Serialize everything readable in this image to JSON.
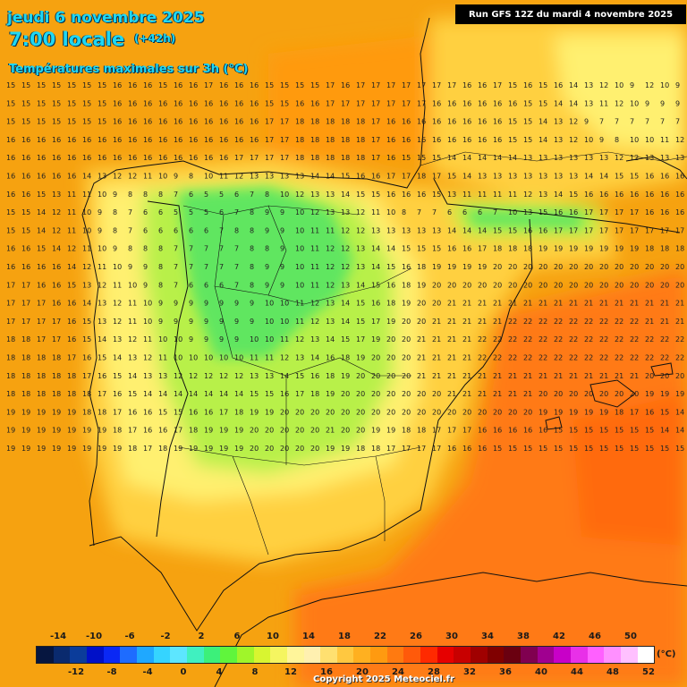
{
  "header": {
    "date": "jeudi 6 novembre 2025",
    "time": "7:00 locale",
    "lead": "(+42h)",
    "parameter": "Températures maximales sur 3h (°C)",
    "run": "Run GFS 12Z du mardi 4 novembre 2025"
  },
  "legend": {
    "unit": "(°C)",
    "upper_labels": [
      "-14",
      "-10",
      "-6",
      "-2",
      "2",
      "6",
      "10",
      "14",
      "18",
      "22",
      "26",
      "30",
      "34",
      "38",
      "42",
      "46",
      "50"
    ],
    "lower_labels": [
      "-12",
      "-8",
      "-4",
      "0",
      "4",
      "8",
      "12",
      "16",
      "20",
      "24",
      "28",
      "32",
      "36",
      "40",
      "44",
      "48",
      "52"
    ],
    "colors": [
      "#061640",
      "#0a2a6e",
      "#0b3c9a",
      "#0010c8",
      "#0a28f5",
      "#1e6cff",
      "#1fa8ff",
      "#35d4ff",
      "#5de6ff",
      "#40f0c0",
      "#3cf07a",
      "#60f53c",
      "#a0f52a",
      "#d8f530",
      "#f5f560",
      "#fff59a",
      "#fff0b0",
      "#ffe070",
      "#ffc840",
      "#ffb020",
      "#ff9a10",
      "#ff7a10",
      "#ff5a0a",
      "#ff2a00",
      "#e60000",
      "#c80000",
      "#a00000",
      "#800000",
      "#6a0010",
      "#800050",
      "#a00090",
      "#c800c8",
      "#e830e8",
      "#ff60ff",
      "#ff90ff",
      "#ffc0ff",
      "#ffffff"
    ]
  },
  "map": {
    "colors": {
      "sea_warm": "#f6a210",
      "sea_hot": "#ff7a14",
      "land_mild": "#ffd040",
      "land_cool": "#fff070",
      "land_cold": "#b8f04a",
      "land_coldest": "#60e660",
      "coast": "#111111"
    },
    "sample_values": [
      [
        15,
        15,
        15,
        15,
        15,
        15,
        15,
        16,
        16,
        16,
        15,
        16,
        16,
        17,
        16,
        16,
        16,
        15,
        15,
        15,
        15,
        17,
        16,
        17,
        17,
        17,
        17,
        17,
        17,
        17,
        16,
        16,
        17,
        15,
        16,
        15,
        16,
        14,
        13,
        12,
        10,
        9,
        12,
        10,
        9
      ],
      [
        15,
        15,
        15,
        15,
        15,
        15,
        15,
        16,
        16,
        16,
        16,
        16,
        16,
        16,
        16,
        16,
        16,
        15,
        15,
        16,
        16,
        17,
        17,
        17,
        17,
        17,
        17,
        17,
        16,
        16,
        16,
        16,
        16,
        16,
        15,
        15,
        14,
        14,
        13,
        11,
        12,
        10,
        9,
        9,
        9
      ],
      [
        15,
        15,
        15,
        15,
        15,
        15,
        15,
        16,
        16,
        16,
        16,
        16,
        16,
        16,
        16,
        16,
        16,
        17,
        17,
        18,
        18,
        18,
        18,
        18,
        17,
        16,
        16,
        16,
        16,
        16,
        16,
        16,
        16,
        15,
        15,
        14,
        13,
        12,
        9,
        7,
        7,
        7,
        7,
        7,
        7
      ],
      [
        16,
        16,
        16,
        16,
        16,
        16,
        16,
        16,
        16,
        16,
        16,
        16,
        16,
        16,
        16,
        16,
        16,
        17,
        17,
        18,
        18,
        18,
        18,
        18,
        17,
        16,
        16,
        16,
        16,
        16,
        16,
        16,
        16,
        15,
        15,
        14,
        13,
        12,
        10,
        9,
        8,
        10,
        10,
        11,
        12
      ],
      [
        16,
        16,
        16,
        16,
        16,
        16,
        16,
        16,
        16,
        16,
        16,
        16,
        16,
        16,
        16,
        17,
        17,
        17,
        17,
        18,
        18,
        18,
        18,
        18,
        17,
        16,
        15,
        15,
        15,
        14,
        14,
        14,
        14,
        14,
        13,
        13,
        13,
        13,
        13,
        13,
        12,
        12,
        13,
        13,
        13
      ],
      [
        16,
        16,
        16,
        16,
        16,
        14,
        13,
        12,
        12,
        11,
        10,
        9,
        8,
        10,
        11,
        12,
        13,
        13,
        13,
        13,
        14,
        14,
        15,
        16,
        16,
        17,
        17,
        18,
        17,
        15,
        14,
        13,
        13,
        13,
        13,
        13,
        13,
        13,
        14,
        14,
        15,
        15,
        16,
        16,
        16
      ],
      [
        16,
        16,
        15,
        13,
        11,
        11,
        10,
        9,
        8,
        8,
        8,
        7,
        6,
        5,
        5,
        6,
        7,
        8,
        10,
        12,
        13,
        13,
        14,
        15,
        15,
        16,
        16,
        16,
        15,
        13,
        11,
        11,
        11,
        11,
        12,
        13,
        14,
        15,
        16,
        16,
        16,
        16,
        16,
        16,
        16
      ],
      [
        15,
        15,
        14,
        12,
        11,
        10,
        9,
        8,
        7,
        6,
        6,
        5,
        5,
        5,
        6,
        7,
        8,
        9,
        9,
        10,
        12,
        13,
        13,
        12,
        11,
        10,
        8,
        7,
        7,
        6,
        6,
        6,
        7,
        10,
        13,
        15,
        16,
        16,
        17,
        17,
        17,
        17,
        16,
        16,
        16
      ],
      [
        15,
        15,
        14,
        12,
        11,
        10,
        9,
        8,
        7,
        6,
        6,
        6,
        6,
        6,
        7,
        8,
        8,
        9,
        9,
        10,
        11,
        11,
        12,
        12,
        13,
        13,
        13,
        13,
        13,
        14,
        14,
        14,
        15,
        15,
        16,
        16,
        17,
        17,
        17,
        17,
        17,
        17,
        17,
        17,
        17
      ],
      [
        16,
        16,
        15,
        14,
        12,
        11,
        10,
        9,
        8,
        8,
        8,
        7,
        7,
        7,
        7,
        7,
        8,
        8,
        9,
        10,
        11,
        12,
        12,
        13,
        14,
        14,
        15,
        15,
        15,
        16,
        16,
        17,
        18,
        18,
        18,
        19,
        19,
        19,
        19,
        19,
        19,
        19,
        18,
        18,
        18
      ],
      [
        16,
        16,
        16,
        16,
        14,
        12,
        11,
        10,
        9,
        9,
        8,
        7,
        7,
        7,
        7,
        7,
        8,
        9,
        9,
        10,
        11,
        12,
        12,
        13,
        14,
        15,
        16,
        18,
        19,
        19,
        19,
        19,
        20,
        20,
        20,
        20,
        20,
        20,
        20,
        20,
        20,
        20,
        20,
        20,
        20
      ],
      [
        17,
        17,
        16,
        16,
        15,
        13,
        12,
        11,
        10,
        9,
        8,
        7,
        6,
        6,
        6,
        7,
        8,
        9,
        9,
        10,
        11,
        12,
        13,
        14,
        15,
        16,
        18,
        19,
        20,
        20,
        20,
        20,
        20,
        20,
        20,
        20,
        20,
        20,
        20,
        20,
        20,
        20,
        20,
        20,
        20
      ],
      [
        17,
        17,
        17,
        16,
        16,
        14,
        13,
        12,
        11,
        10,
        9,
        9,
        9,
        9,
        9,
        9,
        9,
        10,
        10,
        11,
        12,
        13,
        14,
        15,
        16,
        18,
        19,
        20,
        20,
        21,
        21,
        21,
        21,
        21,
        21,
        21,
        21,
        21,
        21,
        21,
        21,
        21,
        21,
        21,
        21
      ],
      [
        17,
        17,
        17,
        17,
        16,
        15,
        13,
        12,
        11,
        10,
        9,
        9,
        9,
        9,
        9,
        9,
        9,
        10,
        10,
        11,
        12,
        13,
        14,
        15,
        17,
        19,
        20,
        20,
        21,
        21,
        21,
        21,
        21,
        22,
        22,
        22,
        22,
        22,
        22,
        22,
        22,
        22,
        21,
        21,
        21
      ],
      [
        18,
        18,
        17,
        17,
        16,
        15,
        14,
        13,
        12,
        11,
        10,
        10,
        9,
        9,
        9,
        9,
        10,
        10,
        11,
        12,
        13,
        14,
        15,
        17,
        19,
        20,
        20,
        21,
        21,
        21,
        21,
        22,
        22,
        22,
        22,
        22,
        22,
        22,
        22,
        22,
        22,
        22,
        22,
        22,
        22
      ],
      [
        18,
        18,
        18,
        18,
        17,
        16,
        15,
        14,
        13,
        12,
        11,
        10,
        10,
        10,
        10,
        10,
        11,
        11,
        12,
        13,
        14,
        16,
        18,
        19,
        20,
        20,
        20,
        21,
        21,
        21,
        21,
        22,
        22,
        22,
        22,
        22,
        22,
        22,
        22,
        22,
        22,
        22,
        22,
        22,
        22
      ],
      [
        18,
        18,
        18,
        18,
        18,
        17,
        16,
        15,
        14,
        13,
        13,
        12,
        12,
        12,
        12,
        12,
        13,
        13,
        14,
        15,
        16,
        18,
        19,
        20,
        20,
        20,
        20,
        21,
        21,
        21,
        21,
        21,
        21,
        21,
        21,
        21,
        21,
        21,
        21,
        21,
        21,
        21,
        20,
        20,
        20
      ],
      [
        18,
        18,
        18,
        18,
        18,
        18,
        17,
        16,
        15,
        14,
        14,
        14,
        14,
        14,
        14,
        14,
        15,
        15,
        16,
        17,
        18,
        19,
        20,
        20,
        20,
        20,
        20,
        20,
        20,
        21,
        21,
        21,
        21,
        21,
        21,
        20,
        20,
        20,
        20,
        20,
        20,
        20,
        19,
        19,
        19
      ],
      [
        19,
        19,
        19,
        19,
        19,
        18,
        18,
        17,
        16,
        16,
        15,
        15,
        16,
        16,
        17,
        18,
        19,
        19,
        20,
        20,
        20,
        20,
        20,
        20,
        20,
        20,
        20,
        20,
        20,
        20,
        20,
        20,
        20,
        20,
        20,
        19,
        19,
        19,
        19,
        19,
        18,
        17,
        16,
        15,
        14
      ],
      [
        19,
        19,
        19,
        19,
        19,
        19,
        19,
        18,
        17,
        16,
        16,
        17,
        18,
        19,
        19,
        19,
        20,
        20,
        20,
        20,
        20,
        21,
        20,
        20,
        19,
        19,
        18,
        18,
        17,
        17,
        17,
        16,
        16,
        16,
        16,
        16,
        15,
        15,
        15,
        15,
        15,
        15,
        15,
        14,
        14
      ],
      [
        19,
        19,
        19,
        19,
        19,
        19,
        19,
        19,
        18,
        17,
        18,
        19,
        19,
        19,
        19,
        19,
        20,
        20,
        20,
        20,
        20,
        19,
        19,
        18,
        18,
        17,
        17,
        17,
        17,
        16,
        16,
        16,
        15,
        15,
        15,
        15,
        15,
        15,
        15,
        15,
        15,
        15,
        15,
        15,
        15
      ]
    ]
  }
}
